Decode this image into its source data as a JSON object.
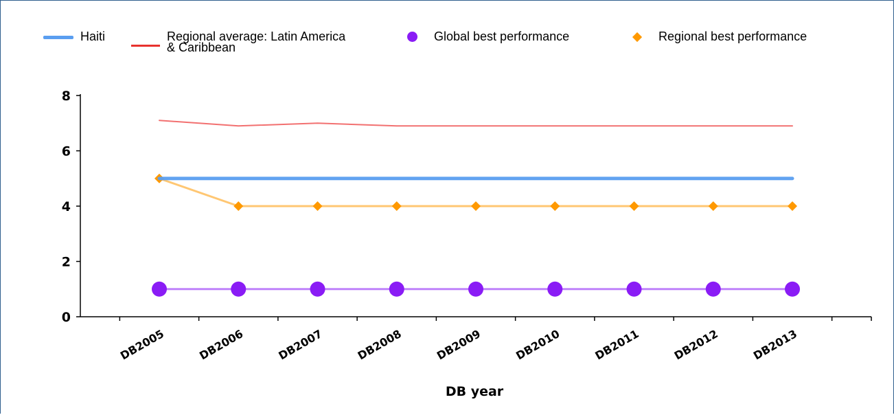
{
  "chart_data": {
    "type": "line",
    "categories": [
      "DB2005",
      "DB2006",
      "DB2007",
      "DB2008",
      "DB2009",
      "DB2010",
      "DB2011",
      "DB2012",
      "DB2013"
    ],
    "series": [
      {
        "name": "Haiti",
        "values": [
          5,
          5,
          5,
          5,
          5,
          5,
          5,
          5,
          5
        ],
        "color": "#5a9ef0",
        "marker": "none"
      },
      {
        "name": "Regional average: Latin America & Caribbean",
        "values": [
          7.1,
          6.9,
          7.0,
          6.9,
          6.9,
          6.9,
          6.9,
          6.9,
          6.9
        ],
        "color": "#ee4040",
        "marker": "none"
      },
      {
        "name": "Global best performance",
        "values": [
          1,
          1,
          1,
          1,
          1,
          1,
          1,
          1,
          1
        ],
        "color": "#8a1cf5",
        "marker": "circle"
      },
      {
        "name": "Regional best performance",
        "values": [
          5,
          4,
          4,
          4,
          4,
          4,
          4,
          4,
          4
        ],
        "color": "#ff9900",
        "marker": "diamond"
      }
    ],
    "title": "",
    "xlabel": "DB year",
    "ylabel": "",
    "ylim": [
      0,
      8
    ],
    "yticks": [
      0,
      2,
      4,
      6,
      8
    ],
    "grid": false,
    "legend_position": "top"
  },
  "legend": {
    "haiti": {
      "line1": "Haiti"
    },
    "regional_average": {
      "line1": "Regional average: Latin America",
      "line2": "& Caribbean"
    },
    "global_best": {
      "line1": "Global best performance"
    },
    "regional_best": {
      "line1": "Regional best performance"
    }
  }
}
